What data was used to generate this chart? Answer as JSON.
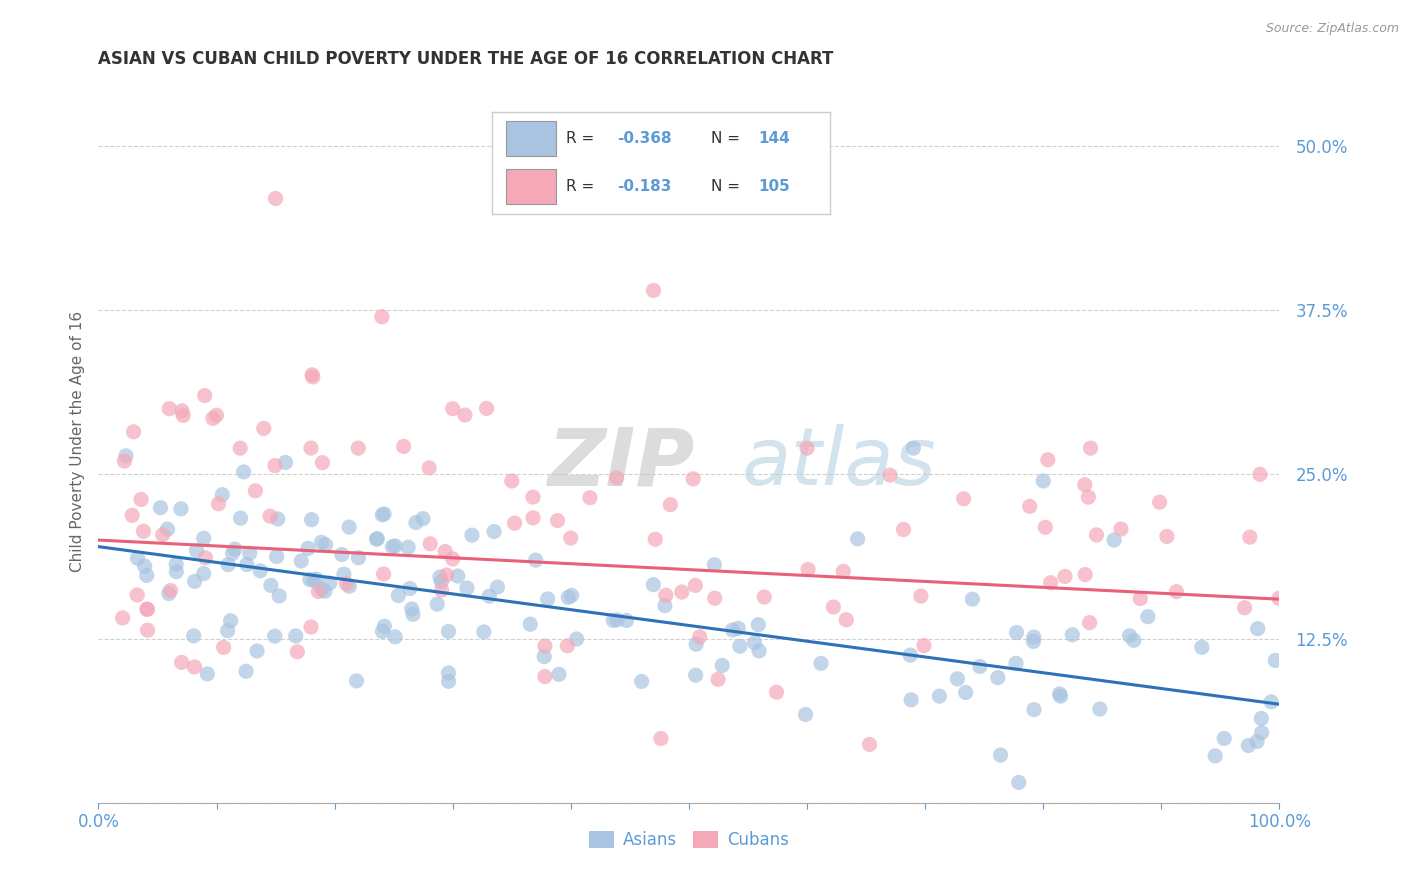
{
  "title": "ASIAN VS CUBAN CHILD POVERTY UNDER THE AGE OF 16 CORRELATION CHART",
  "source": "Source: ZipAtlas.com",
  "ylabel": "Child Poverty Under the Age of 16",
  "xlim": [
    0.0,
    1.0
  ],
  "ylim": [
    0.0,
    0.55
  ],
  "yticks": [
    0.0,
    0.125,
    0.25,
    0.375,
    0.5
  ],
  "ytick_labels": [
    "",
    "12.5%",
    "25.0%",
    "37.5%",
    "50.0%"
  ],
  "asian_R": -0.368,
  "asian_N": 144,
  "cuban_R": -0.183,
  "cuban_N": 105,
  "asian_color": "#a8c4e0",
  "cuban_color": "#f4a8b8",
  "asian_line_color": "#2d72b8",
  "cuban_line_color": "#e8607a",
  "background_color": "#ffffff",
  "grid_color": "#cccccc",
  "title_color": "#333333",
  "axis_label_color": "#5b9bd5",
  "watermark_zip_color": "#c8c8c8",
  "watermark_atlas_color": "#b8cfe8",
  "asian_line_y0": 0.195,
  "asian_line_y1": 0.075,
  "cuban_line_y0": 0.2,
  "cuban_line_y1": 0.155
}
